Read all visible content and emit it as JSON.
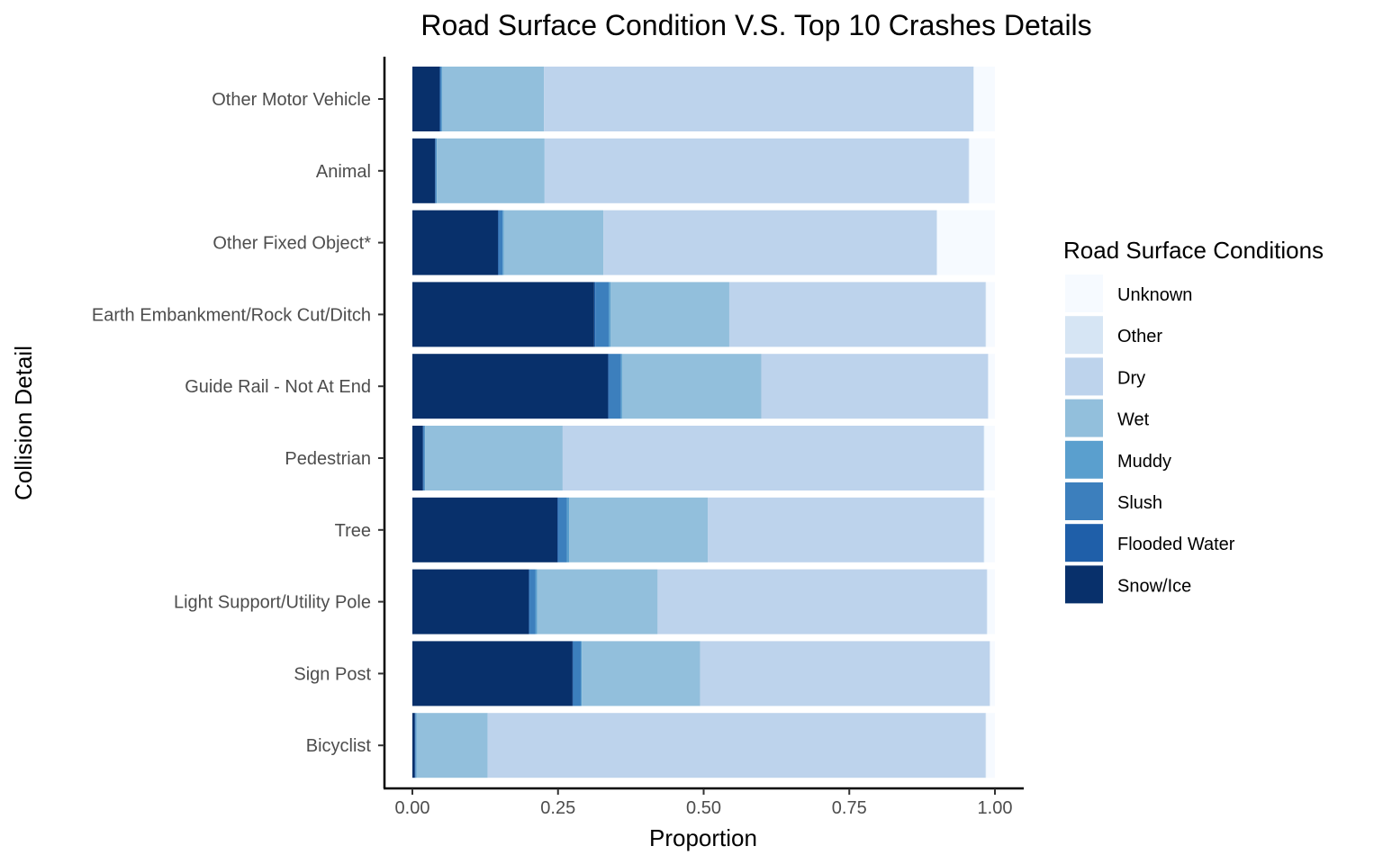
{
  "chart_data": {
    "type": "bar",
    "orientation": "horizontal",
    "stacked": true,
    "title": "Road Surface Condition V.S. Top 10 Crashes Details",
    "xlabel": "Proportion",
    "ylabel": "Collision Detail",
    "xlim": [
      0,
      1
    ],
    "x_ticks": [
      "0.00",
      "0.25",
      "0.50",
      "0.75",
      "1.00"
    ],
    "x_tick_values": [
      0,
      0.25,
      0.5,
      0.75,
      1
    ],
    "grid": false,
    "legend": {
      "title": "Road Surface Conditions",
      "position": "right",
      "entries": [
        "Unknown",
        "Other",
        "Dry",
        "Wet",
        "Muddy",
        "Slush",
        "Flooded Water",
        "Snow/Ice"
      ]
    },
    "categories": [
      "Other Motor Vehicle",
      "Animal",
      "Other Fixed Object*",
      "Earth Embankment/Rock Cut/Ditch",
      "Guide Rail - Not At End",
      "Pedestrian",
      "Tree",
      "Light Support/Utility Pole",
      "Sign Post",
      "Bicyclist"
    ],
    "series": [
      {
        "name": "Snow/Ice",
        "color": "#08306b",
        "values": [
          0.047,
          0.039,
          0.147,
          0.312,
          0.336,
          0.018,
          0.249,
          0.2,
          0.275,
          0.004
        ]
      },
      {
        "name": "Flooded Water",
        "color": "#1f5fa9",
        "values": [
          0.001,
          0.001,
          0.002,
          0.002,
          0.002,
          0.001,
          0.002,
          0.001,
          0.001,
          0.001
        ]
      },
      {
        "name": "Slush",
        "color": "#3c7fbd",
        "values": [
          0.002,
          0.001,
          0.006,
          0.023,
          0.02,
          0.002,
          0.014,
          0.01,
          0.013,
          0.001
        ]
      },
      {
        "name": "Muddy",
        "color": "#5a9fce",
        "values": [
          0.001,
          0.001,
          0.002,
          0.003,
          0.002,
          0.001,
          0.004,
          0.003,
          0.002,
          0.001
        ]
      },
      {
        "name": "Wet",
        "color": "#92bfdc",
        "values": [
          0.175,
          0.185,
          0.171,
          0.204,
          0.239,
          0.236,
          0.238,
          0.207,
          0.203,
          0.122
        ]
      },
      {
        "name": "Dry",
        "color": "#bdd3ec",
        "values": [
          0.737,
          0.728,
          0.572,
          0.44,
          0.389,
          0.723,
          0.474,
          0.565,
          0.497,
          0.855
        ]
      },
      {
        "name": "Other",
        "color": "#d6e5f4",
        "values": [
          0.001,
          0.001,
          0.001,
          0.001,
          0.001,
          0.001,
          0.001,
          0.001,
          0.001,
          0.001
        ]
      },
      {
        "name": "Unknown",
        "color": "#f6faff",
        "values": [
          0.036,
          0.044,
          0.099,
          0.015,
          0.011,
          0.018,
          0.018,
          0.013,
          0.008,
          0.015
        ]
      }
    ]
  }
}
